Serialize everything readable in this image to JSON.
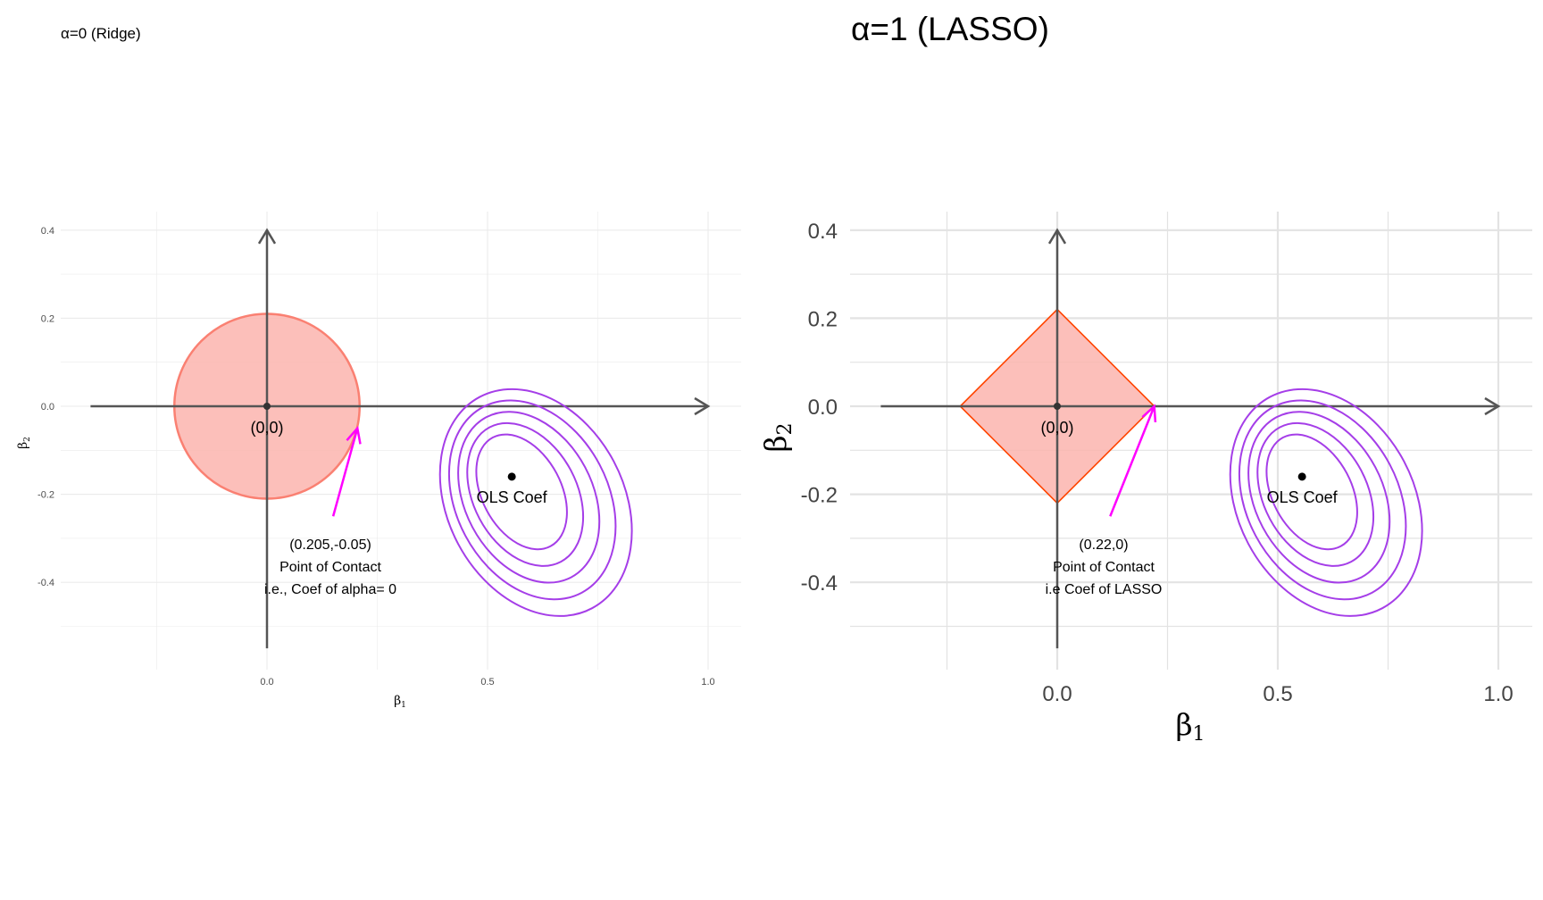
{
  "chart_data": [
    {
      "type": "scatter",
      "title": "α=0 (Ridge)",
      "xlabel": "β1",
      "ylabel": "β2",
      "xlim": [
        -0.5,
        1.07
      ],
      "ylim": [
        -0.6,
        0.44
      ],
      "x_ticks": [
        0.0,
        0.5,
        1.0
      ],
      "x_tick_labels": [
        "0.0",
        "0.5",
        "1.0"
      ],
      "y_ticks": [
        -0.4,
        -0.2,
        0.0,
        0.2,
        0.4
      ],
      "y_tick_labels": [
        "-0.4",
        "-0.2",
        "0.0",
        "0.2",
        "0.4"
      ],
      "grid": true,
      "constraint": {
        "shape": "circle",
        "center": [
          0,
          0
        ],
        "radius": 0.21,
        "fill": "#fbb4ae",
        "stroke": "#fa8072"
      },
      "origin_label": "(0,0)",
      "ols_coef": {
        "x": 0.555,
        "y": -0.16,
        "label": "OLS Coef"
      },
      "contours": {
        "center": [
          0.555,
          -0.16
        ],
        "levels": 5,
        "color": "#a53ee8"
      },
      "point_of_contact": {
        "x": 0.205,
        "y": -0.05,
        "arrow_from": [
          0.15,
          -0.25
        ],
        "color": "#ff00ff",
        "annotation": [
          "(0.205,-0.05)",
          "Point of Contact",
          "i.e., Coef of alpha= 0"
        ]
      }
    },
    {
      "type": "scatter",
      "title": "α=1 (LASSO)",
      "xlabel": "β1",
      "ylabel": "β2",
      "xlim": [
        -0.5,
        1.07
      ],
      "ylim": [
        -0.6,
        0.44
      ],
      "x_ticks": [
        0.0,
        0.5,
        1.0
      ],
      "x_tick_labels": [
        "0.0",
        "0.5",
        "1.0"
      ],
      "y_ticks": [
        -0.4,
        -0.2,
        0.0,
        0.2,
        0.4
      ],
      "y_tick_labels": [
        "-0.4",
        "-0.2",
        "0.0",
        "0.2",
        "0.4"
      ],
      "grid": true,
      "constraint": {
        "shape": "diamond",
        "center": [
          0,
          0
        ],
        "radius": 0.22,
        "fill": "#fbb4ae",
        "stroke": "#ff4500"
      },
      "origin_label": "(0,0)",
      "ols_coef": {
        "x": 0.555,
        "y": -0.16,
        "label": "OLS Coef"
      },
      "contours": {
        "center": [
          0.555,
          -0.16
        ],
        "levels": 5,
        "color": "#a53ee8"
      },
      "point_of_contact": {
        "x": 0.22,
        "y": 0,
        "arrow_from": [
          0.12,
          -0.25
        ],
        "color": "#ff00ff",
        "annotation": [
          "(0.22,0)",
          "Point of Contact",
          "i.e Coef of LASSO"
        ]
      }
    }
  ]
}
